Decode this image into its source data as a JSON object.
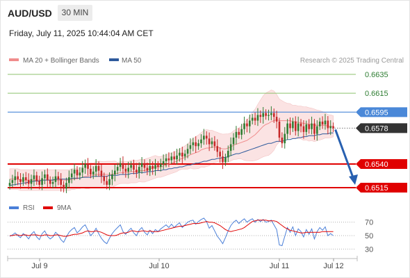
{
  "header": {
    "symbol": "AUD/USD",
    "timeframe": "30 MIN",
    "datetime": "Friday, July 11, 2025 10:44:04 AM CET"
  },
  "legend": {
    "items": [
      {
        "name": "MA 20 + Bollinger Bands",
        "color": "#f08c8c"
      },
      {
        "name": "MA 50",
        "color": "#2e5a9c"
      }
    ],
    "credit": "Research © 2025 Trading Central"
  },
  "colors": {
    "up": "#2e7d32",
    "down": "#c62828",
    "resistance": "#8cc26e",
    "pivot": "#4a88d8",
    "support": "#e00000",
    "current": "#333333",
    "arrow": "#2860b0",
    "bb_fill": "#fbe3e3",
    "ma20": "#f08c8c",
    "ma50": "#2e5a9c",
    "rsi": "#4a7fd8",
    "rsi_ma": "#e00000"
  },
  "chart_data": [
    {
      "type": "candlestick",
      "x_labels": [
        "Jul 9",
        "Jul 10",
        "Jul 11",
        "Jul 12"
      ],
      "ylim": [
        0.6495,
        0.6645
      ],
      "levels": [
        {
          "value": 0.6635,
          "label": "0.6635",
          "kind": "resistance"
        },
        {
          "value": 0.6615,
          "label": "0.6615",
          "kind": "resistance"
        },
        {
          "value": 0.6595,
          "label": "0.6595",
          "kind": "pivot"
        },
        {
          "value": 0.6578,
          "label": "0.6578",
          "kind": "current"
        },
        {
          "value": 0.654,
          "label": "0.6540",
          "kind": "support"
        },
        {
          "value": 0.6515,
          "label": "0.6515",
          "kind": "support"
        }
      ],
      "forecast_arrow": {
        "from": 0.6578,
        "to": 0.6515
      },
      "series": {
        "close": [
          0.652,
          0.6523,
          0.6527,
          0.6524,
          0.6521,
          0.6526,
          0.6523,
          0.6519,
          0.6524,
          0.6528,
          0.6522,
          0.6518,
          0.6525,
          0.6529,
          0.6523,
          0.6519,
          0.6521,
          0.6527,
          0.6524,
          0.6518,
          0.6514,
          0.652,
          0.6526,
          0.653,
          0.6534,
          0.6528,
          0.6531,
          0.6536,
          0.654,
          0.6535,
          0.6529,
          0.6532,
          0.6538,
          0.6533,
          0.6527,
          0.6522,
          0.6518,
          0.6524,
          0.6529,
          0.6533,
          0.6537,
          0.6541,
          0.6535,
          0.6532,
          0.6536,
          0.6539,
          0.6534,
          0.6531,
          0.6537,
          0.6541,
          0.6536,
          0.6533,
          0.6538,
          0.6535,
          0.6539,
          0.6537,
          0.654,
          0.6543,
          0.6546,
          0.6544,
          0.6548,
          0.6545,
          0.6549,
          0.6552,
          0.6548,
          0.6551,
          0.6556,
          0.656,
          0.6563,
          0.6559,
          0.6562,
          0.6566,
          0.657,
          0.6567,
          0.6561,
          0.6564,
          0.6559,
          0.6553,
          0.6548,
          0.6542,
          0.6547,
          0.6554,
          0.6561,
          0.6568,
          0.6574,
          0.6571,
          0.6577,
          0.6583,
          0.658,
          0.6586,
          0.6589,
          0.6586,
          0.6592,
          0.659,
          0.6594,
          0.6591,
          0.6592,
          0.6594,
          0.659,
          0.6585,
          0.6568,
          0.6562,
          0.6572,
          0.6583,
          0.6578,
          0.6585,
          0.6575,
          0.6583,
          0.658,
          0.6574,
          0.6582,
          0.6577,
          0.6583,
          0.6572,
          0.658,
          0.6585,
          0.6582,
          0.6586,
          0.6578,
          0.658,
          0.6578
        ],
        "ma20": [
          0.6524,
          0.6524,
          0.6524,
          0.6524,
          0.6523,
          0.6523,
          0.6523,
          0.6523,
          0.6523,
          0.6523,
          0.6523,
          0.6523,
          0.6523,
          0.6523,
          0.6523,
          0.6523,
          0.6523,
          0.6523,
          0.6523,
          0.6523,
          0.6523,
          0.6523,
          0.6523,
          0.6524,
          0.6524,
          0.6525,
          0.6525,
          0.6526,
          0.6527,
          0.6527,
          0.6528,
          0.6528,
          0.6529,
          0.6529,
          0.6529,
          0.6529,
          0.6529,
          0.6529,
          0.6529,
          0.653,
          0.653,
          0.6531,
          0.6531,
          0.6531,
          0.6531,
          0.6532,
          0.6532,
          0.6532,
          0.6533,
          0.6533,
          0.6533,
          0.6534,
          0.6535,
          0.6536,
          0.6537,
          0.6537,
          0.6537,
          0.6538,
          0.6539,
          0.654,
          0.6541,
          0.6542,
          0.6543,
          0.6545,
          0.6546,
          0.6547,
          0.6548,
          0.655,
          0.6551,
          0.6552,
          0.6553,
          0.6555,
          0.6556,
          0.6557,
          0.6557,
          0.6558,
          0.6558,
          0.6558,
          0.6557,
          0.6556,
          0.6556,
          0.6557,
          0.6558,
          0.656,
          0.6561,
          0.6562,
          0.6563,
          0.6564,
          0.6565,
          0.6567,
          0.6569,
          0.6571,
          0.6574,
          0.6577,
          0.658,
          0.6582,
          0.6583,
          0.6585,
          0.6586,
          0.6587,
          0.6586,
          0.6586,
          0.6586,
          0.6586,
          0.6586,
          0.6585,
          0.6585,
          0.6584,
          0.6584,
          0.6583,
          0.6583,
          0.6582,
          0.6582,
          0.6581,
          0.6581,
          0.6581,
          0.6581,
          0.6581,
          0.658,
          0.658,
          0.658
        ],
        "ma50": [
          0.6517,
          0.6518,
          0.6518,
          0.6519,
          0.6519,
          0.652,
          0.652,
          0.6521,
          0.6521,
          0.6522,
          0.6522,
          0.6522,
          0.6523,
          0.6523,
          0.6523,
          0.6523,
          0.6523,
          0.6524,
          0.6524,
          0.6524,
          0.6524,
          0.6524,
          0.6524,
          0.6525,
          0.6525,
          0.6525,
          0.6525,
          0.6526,
          0.6526,
          0.6526,
          0.6526,
          0.6527,
          0.6527,
          0.6527,
          0.6527,
          0.6527,
          0.6527,
          0.6528,
          0.6528,
          0.6528,
          0.6528,
          0.6529,
          0.6529,
          0.6529,
          0.6529,
          0.653,
          0.653,
          0.653,
          0.6531,
          0.6531,
          0.6531,
          0.6532,
          0.6532,
          0.6532,
          0.6533,
          0.6533,
          0.6533,
          0.6534,
          0.6534,
          0.6535,
          0.6535,
          0.6536,
          0.6536,
          0.6537,
          0.6537,
          0.6538,
          0.6539,
          0.6539,
          0.654,
          0.6541,
          0.6541,
          0.6542,
          0.6543,
          0.6543,
          0.6544,
          0.6545,
          0.6545,
          0.6546,
          0.6546,
          0.6547,
          0.6547,
          0.6548,
          0.6549,
          0.655,
          0.6551,
          0.6551,
          0.6552,
          0.6553,
          0.6554,
          0.6555,
          0.6556,
          0.6557,
          0.6558,
          0.6559,
          0.656,
          0.6561,
          0.6562,
          0.6562,
          0.6563,
          0.6564,
          0.6564,
          0.6564,
          0.6565,
          0.6566,
          0.6566,
          0.6567,
          0.6567,
          0.6568,
          0.6568,
          0.6569,
          0.6569,
          0.657,
          0.657,
          0.657,
          0.6571,
          0.6571,
          0.6572,
          0.6572,
          0.6572,
          0.6573,
          0.6573
        ]
      }
    },
    {
      "type": "line",
      "ylim": [
        20,
        80
      ],
      "y_ticks": [
        70,
        50,
        30
      ],
      "legend": [
        {
          "name": "RSI",
          "color": "#4a7fd8"
        },
        {
          "name": "9MA",
          "color": "#e00000"
        }
      ],
      "series": [
        {
          "name": "RSI",
          "values": [
            49,
            51,
            54,
            50,
            47,
            53,
            50,
            45,
            52,
            56,
            48,
            44,
            53,
            57,
            49,
            45,
            48,
            55,
            51,
            44,
            40,
            48,
            55,
            59,
            62,
            54,
            58,
            63,
            66,
            58,
            50,
            54,
            61,
            53,
            46,
            41,
            38,
            46,
            53,
            58,
            62,
            66,
            56,
            52,
            57,
            61,
            54,
            50,
            58,
            62,
            55,
            51,
            58,
            53,
            59,
            56,
            60,
            63,
            66,
            62,
            67,
            62,
            66,
            69,
            62,
            66,
            70,
            72,
            73,
            67,
            71,
            74,
            76,
            71,
            61,
            65,
            57,
            49,
            44,
            38,
            47,
            57,
            65,
            70,
            73,
            68,
            72,
            75,
            70,
            73,
            75,
            70,
            74,
            71,
            74,
            70,
            71,
            73,
            66,
            59,
            36,
            35,
            49,
            62,
            55,
            63,
            50,
            60,
            56,
            48,
            59,
            52,
            60,
            45,
            56,
            62,
            58,
            63,
            50,
            53,
            50
          ]
        },
        {
          "name": "9MA",
          "values": [
            50,
            50,
            51,
            51,
            50,
            51,
            51,
            50,
            51,
            51,
            51,
            50,
            50,
            51,
            51,
            50,
            50,
            51,
            51,
            50,
            49,
            49,
            50,
            51,
            52,
            52,
            53,
            54,
            56,
            57,
            56,
            56,
            57,
            56,
            55,
            53,
            51,
            50,
            50,
            50,
            51,
            53,
            54,
            54,
            55,
            57,
            57,
            56,
            56,
            57,
            57,
            56,
            57,
            56,
            56,
            56,
            57,
            58,
            59,
            60,
            61,
            62,
            63,
            64,
            64,
            65,
            66,
            67,
            68,
            68,
            68,
            69,
            70,
            71,
            70,
            70,
            69,
            67,
            65,
            62,
            59,
            57,
            56,
            57,
            58,
            59,
            60,
            62,
            65,
            68,
            71,
            72,
            73,
            73,
            73,
            73,
            72,
            72,
            72,
            71,
            68,
            65,
            62,
            60,
            58,
            57,
            56,
            55,
            54,
            54,
            55,
            55,
            55,
            55,
            55,
            55,
            56,
            56,
            56,
            56,
            56
          ]
        }
      ]
    }
  ]
}
